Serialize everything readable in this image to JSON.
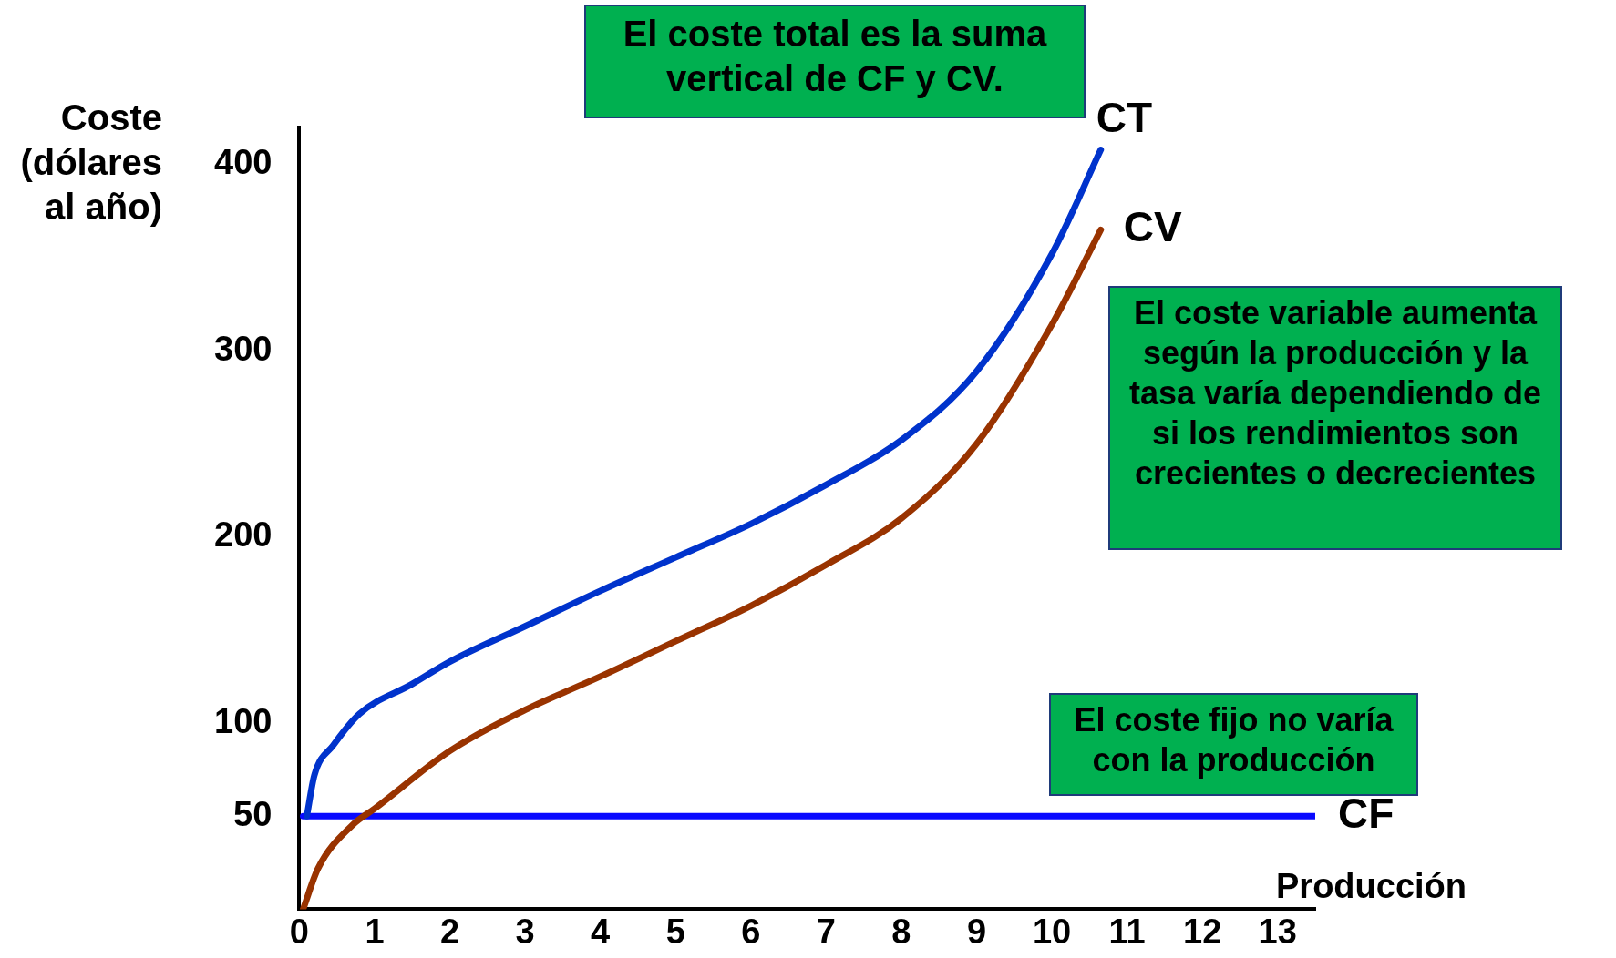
{
  "chart_data": {
    "type": "line",
    "xlabel": "Producción",
    "ylabel": "Coste (dólares al año)",
    "xlim": [
      0,
      13.5
    ],
    "xticks": [
      0,
      1,
      2,
      3,
      4,
      5,
      6,
      7,
      8,
      9,
      10,
      11,
      12,
      13
    ],
    "ylim": [
      0,
      420
    ],
    "yticks": [
      50,
      100,
      200,
      300,
      400
    ],
    "grid": false,
    "legend": false,
    "marker": "none",
    "line_style": "solid",
    "series": [
      {
        "name": "CT",
        "color": "#0033cc",
        "x": [
          0.1,
          0.2,
          0.45,
          0.8,
          1.5,
          2,
          3,
          4,
          5,
          6,
          7,
          8,
          9,
          10,
          10.65
        ],
        "values": [
          50,
          72,
          88,
          105,
          121,
          133,
          152,
          171,
          189,
          207,
          228,
          252,
          289,
          352,
          408
        ]
      },
      {
        "name": "CV",
        "color": "#993300",
        "x": [
          0.05,
          0.25,
          0.7,
          1,
          2,
          3,
          4,
          5,
          6,
          7,
          8,
          9,
          10,
          10.65
        ],
        "values": [
          0,
          22,
          45,
          54,
          85,
          107,
          125,
          144,
          163,
          185,
          210,
          250,
          314,
          365
        ]
      },
      {
        "name": "CF",
        "color": "#0a0aff",
        "x": [
          0.05,
          13.5
        ],
        "values": [
          50,
          50
        ]
      }
    ],
    "annotations": [
      "El coste total es la suma vertical de CF y CV.",
      "El coste variable aumenta según la producción y la tasa varía dependiendo de si los rendimientos son crecientes o decrecientes",
      "El coste fijo no varía con la producción"
    ]
  }
}
